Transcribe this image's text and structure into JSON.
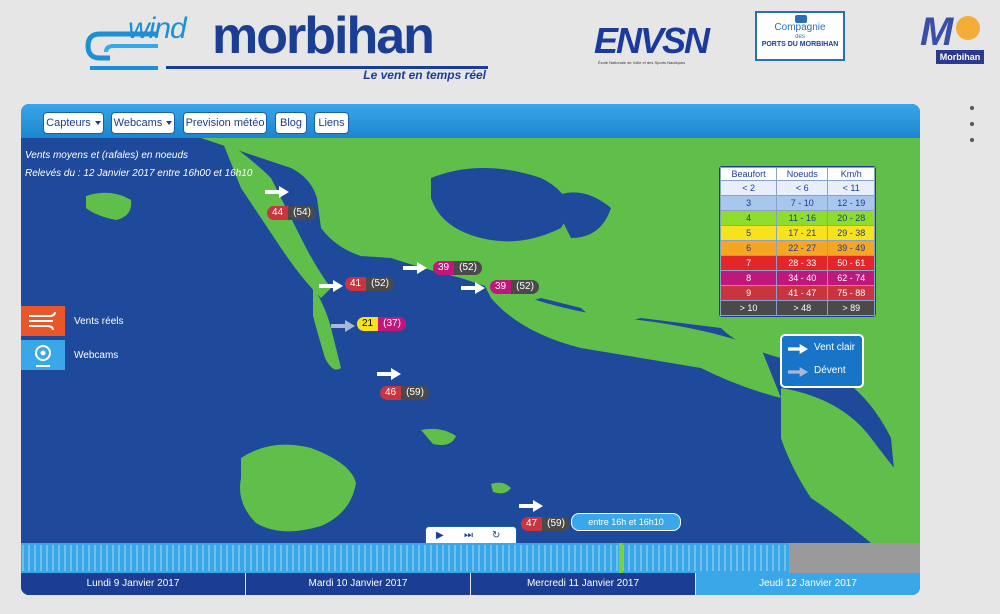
{
  "header": {
    "logo_wind": "wind",
    "logo_morbihan": "morbihan",
    "tagline": "Le vent en temps réel",
    "partner_ensn": "ENVSN",
    "partner_ensn_sub": "École Nationale de Voile et des Sports Nautiques",
    "partner_ports_l1": "Compagnie",
    "partner_ports_l2": "des",
    "partner_ports_l3": "PORTS DU MORBIHAN",
    "partner_morbihan": "Morbihan"
  },
  "nav": {
    "capteurs": "Capteurs",
    "webcams": "Webcams",
    "prevision": "Prevision météo",
    "blog": "Blog",
    "liens": "Liens"
  },
  "map": {
    "info_line1": "Vents moyens et (rafales) en noeuds",
    "info_line2": "Relevés du : 12 Janvier 2017 entre 16h00 et 16h10",
    "stations": [
      {
        "wind": "44",
        "gust": "(54)"
      },
      {
        "wind": "41",
        "gust": "(52)"
      },
      {
        "wind": "39",
        "gust": "(52)"
      },
      {
        "wind": "39",
        "gust": "(52)"
      },
      {
        "wind": "21",
        "gust": "(37)"
      },
      {
        "wind": "46",
        "gust": "(59)"
      },
      {
        "wind": "47",
        "gust": "(59)"
      }
    ]
  },
  "legend": {
    "headers": [
      "Beaufort",
      "Noeuds",
      "Km/h"
    ],
    "rows": [
      {
        "b": "< 2",
        "n": "< 6",
        "k": "< 11",
        "color": "#e8eefc"
      },
      {
        "b": "3",
        "n": "7 - 10",
        "k": "12 - 19",
        "color": "#a9c6ec"
      },
      {
        "b": "4",
        "n": "11 - 16",
        "k": "20 - 28",
        "color": "#8fdc2c"
      },
      {
        "b": "5",
        "n": "17 - 21",
        "k": "29 - 38",
        "color": "#f7e21c"
      },
      {
        "b": "6",
        "n": "22 - 27",
        "k": "39 - 49",
        "color": "#f5a623"
      },
      {
        "b": "7",
        "n": "28 - 33",
        "k": "50 - 61",
        "color": "#e3262a"
      },
      {
        "b": "8",
        "n": "34 - 40",
        "k": "62 - 74",
        "color": "#c0187a"
      },
      {
        "b": "9",
        "n": "41 - 47",
        "k": "75 - 88",
        "color": "#c8343f"
      },
      {
        "b": "> 10",
        "n": "> 48",
        "k": "> 89",
        "color": "#4a4a4a"
      }
    ]
  },
  "vent_legend": {
    "clair": "Vent clair",
    "devent": "Dévent"
  },
  "side": {
    "vents_reels": "Vents réels",
    "webcams": "Webcams"
  },
  "timeline": {
    "tooltip": "entre 16h et 16h10",
    "days": [
      "Lundi 9 Janvier 2017",
      "Mardi 10 Janvier 2017",
      "Mercredi 11 Janvier 2017",
      "Jeudi 12 Janvier 2017"
    ]
  },
  "colors": {
    "sea": "#1f4a9c",
    "land": "#5fbf4a",
    "accent": "#3aa7e8",
    "brand": "#1b3d93",
    "cursor": "#7ad03a"
  }
}
